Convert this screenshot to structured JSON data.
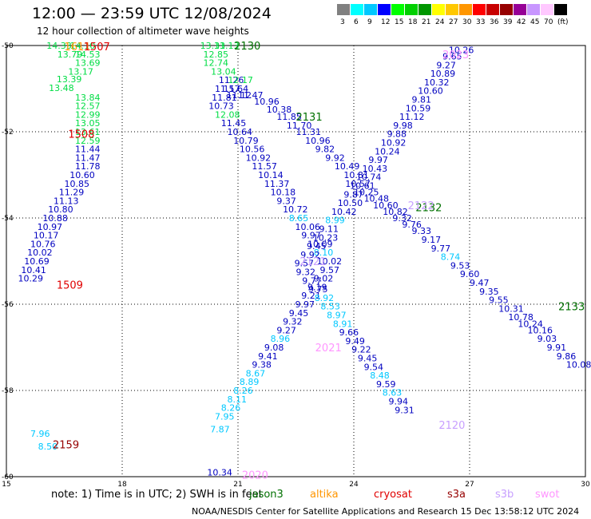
{
  "header": {
    "title": "12:00 — 23:59 UTC 12/08/2024",
    "subtitle": "12 hour collection of altimeter wave heights"
  },
  "legend": {
    "colors": [
      "#808080",
      "#00ffff",
      "#00c8ff",
      "#0000ff",
      "#00ff00",
      "#00d000",
      "#009600",
      "#ffff00",
      "#ffc800",
      "#ff9600",
      "#ff0000",
      "#c80000",
      "#960000",
      "#960096",
      "#c896ff",
      "#ffc8ff",
      "#000000"
    ],
    "labels": [
      "3",
      "6",
      "9",
      "12",
      "15",
      "18",
      "21",
      "24",
      "27",
      "30",
      "33",
      "36",
      "39",
      "42",
      "45",
      "70",
      "(ft)"
    ]
  },
  "footer": {
    "note": "note: 1) Time is in UTC; 2) SWH is in feet",
    "credit": "NOAA/NESDIS Center for Satellite Applications and Research   15 Dec 13:58:12 UTC 2024",
    "satellites": [
      {
        "name": "jason3",
        "color": "#007000"
      },
      {
        "name": "altika",
        "color": "#ff9600"
      },
      {
        "name": "cryosat",
        "color": "#e00000"
      },
      {
        "name": "s3a",
        "color": "#960000"
      },
      {
        "name": "s3b",
        "color": "#c8a0ff"
      },
      {
        "name": "swot",
        "color": "#ff96ff"
      }
    ]
  },
  "chart_data": {
    "type": "scatter",
    "xlim": [
      15,
      30
    ],
    "ylim": [
      -60,
      -50
    ],
    "x_ticks": [
      15,
      18,
      21,
      24,
      27,
      30
    ],
    "y_ticks": [
      -50,
      -52,
      -54,
      -56,
      -58,
      -60
    ],
    "colors": {
      "low": "#00c8ff",
      "mid": "#0000c0",
      "high": "#00dd44"
    },
    "track_labels": [
      {
        "text": "1611",
        "x": 16.5,
        "y": -50.02,
        "color": "#ff9600"
      },
      {
        "text": "1507",
        "x": 17.0,
        "y": -50.02,
        "color": "#e00000"
      },
      {
        "text": "1508",
        "x": 16.6,
        "y": -52.05,
        "color": "#e00000"
      },
      {
        "text": "1509",
        "x": 16.3,
        "y": -55.55,
        "color": "#e00000"
      },
      {
        "text": "2159",
        "x": 16.2,
        "y": -59.25,
        "color": "#960000"
      },
      {
        "text": "2130",
        "x": 20.9,
        "y": -50.0,
        "color": "#007000"
      },
      {
        "text": "2131",
        "x": 22.5,
        "y": -51.65,
        "color": "#007000"
      },
      {
        "text": "2132",
        "x": 25.6,
        "y": -53.75,
        "color": "#007000"
      },
      {
        "text": "2133",
        "x": 29.3,
        "y": -56.05,
        "color": "#007000"
      },
      {
        "text": "2023",
        "x": 26.3,
        "y": -50.2,
        "color": "#ff96ff"
      },
      {
        "text": "2021",
        "x": 23.0,
        "y": -57.0,
        "color": "#ff96ff"
      },
      {
        "text": "2020",
        "x": 21.1,
        "y": -59.95,
        "color": "#ff96ff"
      },
      {
        "text": "2120",
        "x": 26.2,
        "y": -58.8,
        "color": "#c8a0ff"
      },
      {
        "text": "2121",
        "x": 22.6,
        "y": -55.0,
        "color": "#c8a0ff"
      },
      {
        "text": "2122",
        "x": 25.4,
        "y": -53.7,
        "color": "#c8a0ff"
      }
    ],
    "points": [
      {
        "x": 16.04,
        "y": -50.0,
        "v": 14.33
      },
      {
        "x": 16.65,
        "y": -50.0,
        "v": 14.1
      },
      {
        "x": 16.32,
        "y": -50.2,
        "v": 13.79
      },
      {
        "x": 16.78,
        "y": -50.2,
        "v": 14.53
      },
      {
        "x": 16.78,
        "y": -50.4,
        "v": 13.69
      },
      {
        "x": 16.6,
        "y": -50.6,
        "v": 13.17
      },
      {
        "x": 16.3,
        "y": -50.78,
        "v": 13.39
      },
      {
        "x": 16.1,
        "y": -50.98,
        "v": 13.48
      },
      {
        "x": 16.78,
        "y": -51.2,
        "v": 13.84
      },
      {
        "x": 16.78,
        "y": -51.4,
        "v": 12.57
      },
      {
        "x": 16.78,
        "y": -51.6,
        "v": 12.99
      },
      {
        "x": 16.78,
        "y": -51.8,
        "v": 13.05
      },
      {
        "x": 16.78,
        "y": -52.0,
        "v": 13.61
      },
      {
        "x": 16.78,
        "y": -52.2,
        "v": 12.59
      },
      {
        "x": 16.78,
        "y": -52.4,
        "v": 11.44
      },
      {
        "x": 16.78,
        "y": -52.6,
        "v": 11.47
      },
      {
        "x": 16.78,
        "y": -52.8,
        "v": 11.78
      },
      {
        "x": 16.64,
        "y": -53.0,
        "v": 10.6
      },
      {
        "x": 16.5,
        "y": -53.2,
        "v": 10.85
      },
      {
        "x": 16.36,
        "y": -53.4,
        "v": 11.29
      },
      {
        "x": 16.22,
        "y": -53.6,
        "v": 11.13
      },
      {
        "x": 16.08,
        "y": -53.8,
        "v": 10.8
      },
      {
        "x": 15.94,
        "y": -54.0,
        "v": 10.88
      },
      {
        "x": 15.8,
        "y": -54.2,
        "v": 10.97
      },
      {
        "x": 15.7,
        "y": -54.4,
        "v": 10.17
      },
      {
        "x": 15.62,
        "y": -54.6,
        "v": 10.76
      },
      {
        "x": 15.54,
        "y": -54.8,
        "v": 10.02
      },
      {
        "x": 15.46,
        "y": -55.0,
        "v": 10.69
      },
      {
        "x": 15.38,
        "y": -55.2,
        "v": 10.41
      },
      {
        "x": 15.3,
        "y": -55.4,
        "v": 10.29
      },
      {
        "x": 15.62,
        "y": -59.0,
        "v": 7.96
      },
      {
        "x": 15.82,
        "y": -59.3,
        "v": 8.5
      },
      {
        "x": 20.02,
        "y": -50.0,
        "v": 13.31
      },
      {
        "x": 20.38,
        "y": -50.0,
        "v": 13.13
      },
      {
        "x": 20.1,
        "y": -50.2,
        "v": 12.85
      },
      {
        "x": 20.1,
        "y": -50.4,
        "v": 12.74
      },
      {
        "x": 20.3,
        "y": -50.6,
        "v": 13.04
      },
      {
        "x": 20.5,
        "y": -50.8,
        "v": 11.26
      },
      {
        "x": 20.74,
        "y": -50.8,
        "v": 12.17
      },
      {
        "x": 20.62,
        "y": -51.0,
        "v": 11.64
      },
      {
        "x": 20.7,
        "y": -51.15,
        "v": 11.12
      },
      {
        "x": 21.0,
        "y": -51.15,
        "v": 11.47
      },
      {
        "x": 21.42,
        "y": -51.3,
        "v": 10.96
      },
      {
        "x": 21.74,
        "y": -51.48,
        "v": 10.38
      },
      {
        "x": 22.0,
        "y": -51.65,
        "v": 11.85
      },
      {
        "x": 22.26,
        "y": -51.85,
        "v": 11.7
      },
      {
        "x": 22.5,
        "y": -52.0,
        "v": 11.31
      },
      {
        "x": 22.74,
        "y": -52.2,
        "v": 10.96
      },
      {
        "x": 23.0,
        "y": -52.4,
        "v": 9.82
      },
      {
        "x": 23.26,
        "y": -52.6,
        "v": 9.92
      },
      {
        "x": 23.5,
        "y": -52.8,
        "v": 10.49
      },
      {
        "x": 23.74,
        "y": -53.0,
        "v": 10.81
      },
      {
        "x": 23.78,
        "y": -53.2,
        "v": 10.57
      },
      {
        "x": 24.0,
        "y": -53.4,
        "v": 10.25
      },
      {
        "x": 24.26,
        "y": -53.55,
        "v": 10.48
      },
      {
        "x": 24.5,
        "y": -53.7,
        "v": 10.6
      },
      {
        "x": 24.75,
        "y": -53.85,
        "v": 10.82
      },
      {
        "x": 25.0,
        "y": -54.0,
        "v": 9.32
      },
      {
        "x": 25.25,
        "y": -54.15,
        "v": 9.76
      },
      {
        "x": 25.5,
        "y": -54.3,
        "v": 9.33
      },
      {
        "x": 25.75,
        "y": -54.5,
        "v": 9.17
      },
      {
        "x": 26.0,
        "y": -54.7,
        "v": 9.77
      },
      {
        "x": 26.25,
        "y": -54.9,
        "v": 8.74
      },
      {
        "x": 26.5,
        "y": -55.1,
        "v": 9.53
      },
      {
        "x": 26.75,
        "y": -55.3,
        "v": 9.6
      },
      {
        "x": 27.0,
        "y": -55.5,
        "v": 9.47
      },
      {
        "x": 27.25,
        "y": -55.7,
        "v": 9.35
      },
      {
        "x": 27.5,
        "y": -55.9,
        "v": 9.55
      },
      {
        "x": 27.75,
        "y": -56.1,
        "v": 10.31
      },
      {
        "x": 28.0,
        "y": -56.3,
        "v": 10.78
      },
      {
        "x": 28.25,
        "y": -56.45,
        "v": 10.24
      },
      {
        "x": 28.5,
        "y": -56.6,
        "v": 10.16
      },
      {
        "x": 28.75,
        "y": -56.8,
        "v": 9.03
      },
      {
        "x": 29.0,
        "y": -57.0,
        "v": 9.91
      },
      {
        "x": 29.25,
        "y": -57.2,
        "v": 9.86
      },
      {
        "x": 29.5,
        "y": -57.4,
        "v": 10.08
      },
      {
        "x": 20.4,
        "y": -51.0,
        "v": 11.57
      },
      {
        "x": 20.32,
        "y": -51.2,
        "v": 11.81
      },
      {
        "x": 20.24,
        "y": -51.4,
        "v": 10.73
      },
      {
        "x": 20.4,
        "y": -51.6,
        "v": 12.08
      },
      {
        "x": 20.56,
        "y": -51.8,
        "v": 11.45
      },
      {
        "x": 20.72,
        "y": -52.0,
        "v": 10.64
      },
      {
        "x": 20.88,
        "y": -52.2,
        "v": 10.79
      },
      {
        "x": 21.04,
        "y": -52.4,
        "v": 10.56
      },
      {
        "x": 21.2,
        "y": -52.6,
        "v": 10.92
      },
      {
        "x": 21.36,
        "y": -52.8,
        "v": 11.57
      },
      {
        "x": 21.52,
        "y": -53.0,
        "v": 10.14
      },
      {
        "x": 21.68,
        "y": -53.2,
        "v": 11.37
      },
      {
        "x": 21.84,
        "y": -53.4,
        "v": 10.18
      },
      {
        "x": 22.0,
        "y": -53.6,
        "v": 9.37
      },
      {
        "x": 22.16,
        "y": -53.8,
        "v": 10.72
      },
      {
        "x": 22.32,
        "y": -54.0,
        "v": 8.65
      },
      {
        "x": 22.48,
        "y": -54.2,
        "v": 10.06
      },
      {
        "x": 22.64,
        "y": -54.4,
        "v": 9.97
      },
      {
        "x": 22.8,
        "y": -54.6,
        "v": 10.09
      },
      {
        "x": 22.96,
        "y": -54.8,
        "v": 8.1
      },
      {
        "x": 23.04,
        "y": -55.0,
        "v": 10.02
      },
      {
        "x": 23.12,
        "y": -55.2,
        "v": 9.57
      },
      {
        "x": 22.96,
        "y": -55.4,
        "v": 9.02
      },
      {
        "x": 22.8,
        "y": -55.6,
        "v": 9.19
      },
      {
        "x": 22.64,
        "y": -55.8,
        "v": 9.21
      },
      {
        "x": 22.48,
        "y": -56.0,
        "v": 9.97
      },
      {
        "x": 22.32,
        "y": -56.2,
        "v": 9.45
      },
      {
        "x": 22.16,
        "y": -56.4,
        "v": 9.32
      },
      {
        "x": 22.0,
        "y": -56.6,
        "v": 9.27
      },
      {
        "x": 21.84,
        "y": -56.8,
        "v": 8.96
      },
      {
        "x": 21.68,
        "y": -57.0,
        "v": 9.08
      },
      {
        "x": 21.52,
        "y": -57.2,
        "v": 9.41
      },
      {
        "x": 21.36,
        "y": -57.4,
        "v": 9.38
      },
      {
        "x": 21.2,
        "y": -57.6,
        "v": 8.67
      },
      {
        "x": 21.04,
        "y": -57.8,
        "v": 8.89
      },
      {
        "x": 20.88,
        "y": -58.0,
        "v": 8.26
      },
      {
        "x": 20.72,
        "y": -58.2,
        "v": 8.11
      },
      {
        "x": 20.56,
        "y": -58.4,
        "v": 8.26
      },
      {
        "x": 20.4,
        "y": -58.6,
        "v": 7.95
      },
      {
        "x": 20.28,
        "y": -58.9,
        "v": 7.87
      },
      {
        "x": 20.2,
        "y": -59.9,
        "v": 10.34
      },
      {
        "x": 26.46,
        "y": -50.1,
        "v": 10.26
      },
      {
        "x": 26.3,
        "y": -50.25,
        "v": 9.65
      },
      {
        "x": 26.14,
        "y": -50.45,
        "v": 9.27
      },
      {
        "x": 25.98,
        "y": -50.65,
        "v": 10.89
      },
      {
        "x": 25.82,
        "y": -50.85,
        "v": 10.32
      },
      {
        "x": 25.66,
        "y": -51.05,
        "v": 10.6
      },
      {
        "x": 25.5,
        "y": -51.25,
        "v": 9.81
      },
      {
        "x": 25.34,
        "y": -51.45,
        "v": 10.59
      },
      {
        "x": 25.18,
        "y": -51.65,
        "v": 11.12
      },
      {
        "x": 25.02,
        "y": -51.85,
        "v": 9.98
      },
      {
        "x": 24.86,
        "y": -52.05,
        "v": 9.88
      },
      {
        "x": 24.7,
        "y": -52.25,
        "v": 10.92
      },
      {
        "x": 24.54,
        "y": -52.45,
        "v": 10.24
      },
      {
        "x": 24.38,
        "y": -52.65,
        "v": 9.97
      },
      {
        "x": 24.22,
        "y": -52.85,
        "v": 10.43
      },
      {
        "x": 24.06,
        "y": -53.05,
        "v": 10.74
      },
      {
        "x": 23.9,
        "y": -53.25,
        "v": 10.61
      },
      {
        "x": 23.74,
        "y": -53.45,
        "v": 9.87
      },
      {
        "x": 23.58,
        "y": -53.65,
        "v": 10.5
      },
      {
        "x": 23.42,
        "y": -53.85,
        "v": 10.42
      },
      {
        "x": 23.26,
        "y": -54.05,
        "v": 8.99
      },
      {
        "x": 23.1,
        "y": -54.25,
        "v": 9.11
      },
      {
        "x": 22.94,
        "y": -54.45,
        "v": 10.23
      },
      {
        "x": 22.78,
        "y": -54.65,
        "v": 9.45
      },
      {
        "x": 22.62,
        "y": -54.85,
        "v": 9.92
      },
      {
        "x": 22.46,
        "y": -55.05,
        "v": 9.57
      },
      {
        "x": 22.5,
        "y": -55.25,
        "v": 9.32
      },
      {
        "x": 22.66,
        "y": -55.45,
        "v": 9.77
      },
      {
        "x": 22.82,
        "y": -55.65,
        "v": 9.75
      },
      {
        "x": 22.98,
        "y": -55.85,
        "v": 8.92
      },
      {
        "x": 23.14,
        "y": -56.05,
        "v": 8.53
      },
      {
        "x": 23.3,
        "y": -56.25,
        "v": 8.97
      },
      {
        "x": 23.46,
        "y": -56.45,
        "v": 8.91
      },
      {
        "x": 23.62,
        "y": -56.65,
        "v": 9.66
      },
      {
        "x": 23.78,
        "y": -56.85,
        "v": 9.49
      },
      {
        "x": 23.94,
        "y": -57.05,
        "v": 9.22
      },
      {
        "x": 24.1,
        "y": -57.25,
        "v": 9.45
      },
      {
        "x": 24.26,
        "y": -57.45,
        "v": 9.54
      },
      {
        "x": 24.42,
        "y": -57.65,
        "v": 8.48
      },
      {
        "x": 24.58,
        "y": -57.85,
        "v": 9.59
      },
      {
        "x": 24.74,
        "y": -58.05,
        "v": 8.63
      },
      {
        "x": 24.9,
        "y": -58.25,
        "v": 9.94
      },
      {
        "x": 25.06,
        "y": -58.45,
        "v": 9.31
      }
    ]
  }
}
